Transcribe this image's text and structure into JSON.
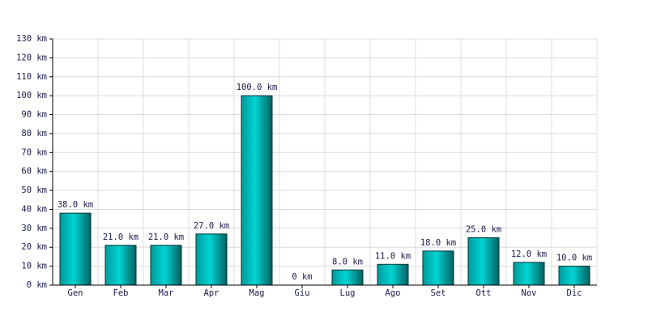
{
  "chart_data": {
    "type": "bar",
    "categories": [
      "Gen",
      "Feb",
      "Mar",
      "Apr",
      "Mag",
      "Giu",
      "Lug",
      "Ago",
      "Set",
      "Ott",
      "Nov",
      "Dic"
    ],
    "values": [
      38,
      21,
      21,
      27,
      100,
      0,
      8,
      11,
      18,
      25,
      12,
      10
    ],
    "value_labels": [
      "38.0 km",
      "21.0 km",
      "21.0 km",
      "27.0 km",
      "100.0 km",
      "0 km",
      "8.0 km",
      "11.0 km",
      "18.0 km",
      "25.0 km",
      "12.0 km",
      "10.0 km"
    ],
    "color": "#00d4d4",
    "ylim": [
      0,
      130
    ],
    "yticks": [
      {
        "value": 0,
        "label": "0 km"
      },
      {
        "value": 10,
        "label": "10 km"
      },
      {
        "value": 20,
        "label": "20 km"
      },
      {
        "value": 30,
        "label": "30 km"
      },
      {
        "value": 40,
        "label": "40 km"
      },
      {
        "value": 50,
        "label": "50 km"
      },
      {
        "value": 60,
        "label": "60 km"
      },
      {
        "value": 70,
        "label": "70 km"
      },
      {
        "value": 80,
        "label": "80 km"
      },
      {
        "value": 90,
        "label": "90 km"
      },
      {
        "value": 100,
        "label": "100 km"
      },
      {
        "value": 110,
        "label": "110 km"
      },
      {
        "value": 120,
        "label": "120 km"
      },
      {
        "value": 130,
        "label": "130 km"
      }
    ],
    "grid": true
  }
}
